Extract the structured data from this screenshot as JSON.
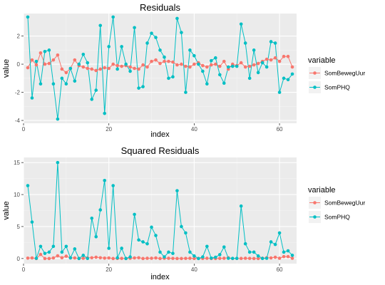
{
  "chart_data": [
    {
      "type": "line",
      "title": "Residuals",
      "xlabel": "index",
      "ylabel": "value",
      "xlim": [
        0,
        64
      ],
      "ylim": [
        -4.2,
        3.6
      ],
      "xticks": [
        0,
        20,
        40,
        60
      ],
      "yticks": [
        -4,
        -2,
        0,
        2
      ],
      "grid": true,
      "legend": {
        "title": "variable",
        "placement": "right"
      },
      "x": [
        1,
        2,
        3,
        4,
        5,
        6,
        7,
        8,
        9,
        10,
        11,
        12,
        13,
        14,
        15,
        16,
        17,
        18,
        19,
        20,
        21,
        22,
        23,
        24,
        25,
        26,
        27,
        28,
        29,
        30,
        31,
        32,
        33,
        34,
        35,
        36,
        37,
        38,
        39,
        40,
        41,
        42,
        43,
        44,
        45,
        46,
        47,
        48,
        49,
        50,
        51,
        52,
        53,
        54,
        55,
        56,
        57,
        58,
        59,
        60,
        61,
        62,
        63
      ],
      "series": [
        {
          "name": "SomBewegUur",
          "color": "#F8766D",
          "values": [
            -0.25,
            0.3,
            -0.05,
            0.8,
            0.0,
            0.05,
            0.3,
            0.65,
            -0.35,
            -0.6,
            -0.3,
            0.3,
            -0.1,
            -0.2,
            -0.3,
            -0.35,
            -0.45,
            -0.35,
            -0.25,
            -0.3,
            0.0,
            -0.1,
            -0.15,
            -0.1,
            -0.2,
            -0.3,
            -0.35,
            -0.05,
            -0.2,
            0.2,
            0.3,
            0.05,
            0.2,
            0.2,
            0.15,
            -0.05,
            0.0,
            -0.15,
            -0.2,
            0.0,
            0.1,
            -0.1,
            -0.2,
            -0.05,
            0.0,
            -0.15,
            0.2,
            -0.35,
            0.0,
            -0.1,
            0.1,
            -0.2,
            -0.15,
            -0.05,
            0.05,
            0.2,
            0.35,
            0.3,
            0.45,
            0.2,
            0.55,
            0.55,
            -0.2
          ]
        },
        {
          "name": "SomPHQ",
          "color": "#00BFC4",
          "values": [
            3.35,
            -2.4,
            0.2,
            -1.4,
            0.9,
            1.0,
            -1.4,
            -3.9,
            -1.0,
            -1.4,
            -0.3,
            -1.2,
            0.0,
            0.7,
            0.1,
            -2.5,
            -1.85,
            2.75,
            -3.5,
            1.25,
            3.35,
            -0.35,
            1.25,
            0.0,
            -0.5,
            2.6,
            -1.7,
            -1.6,
            1.5,
            2.2,
            1.9,
            1.0,
            0.5,
            -1.0,
            -0.9,
            3.25,
            2.25,
            -2.0,
            1.0,
            0.6,
            0.0,
            -0.5,
            -1.4,
            0.25,
            0.45,
            -0.75,
            -1.35,
            -0.2,
            -0.15,
            -0.15,
            2.85,
            1.5,
            -1.0,
            1.0,
            -0.6,
            0.1,
            -0.2,
            1.6,
            1.5,
            -2.0,
            -1.0,
            -1.1,
            -0.7
          ]
        }
      ]
    },
    {
      "type": "line",
      "title": "Squared Residuals",
      "xlabel": "index",
      "ylabel": "value",
      "xlim": [
        0,
        64
      ],
      "ylim": [
        -0.8,
        15.8
      ],
      "xticks": [
        0,
        20,
        40,
        60
      ],
      "yticks": [
        0,
        5,
        10,
        15
      ],
      "grid": true,
      "legend": {
        "title": "variable",
        "placement": "right"
      },
      "x": [
        1,
        2,
        3,
        4,
        5,
        6,
        7,
        8,
        9,
        10,
        11,
        12,
        13,
        14,
        15,
        16,
        17,
        18,
        19,
        20,
        21,
        22,
        23,
        24,
        25,
        26,
        27,
        28,
        29,
        30,
        31,
        32,
        33,
        34,
        35,
        36,
        37,
        38,
        39,
        40,
        41,
        42,
        43,
        44,
        45,
        46,
        47,
        48,
        49,
        50,
        51,
        52,
        53,
        54,
        55,
        56,
        57,
        58,
        59,
        60,
        61,
        62,
        63
      ],
      "series": [
        {
          "name": "SomBewegUur",
          "color": "#F8766D",
          "values": [
            0.06,
            0.09,
            0.0,
            0.64,
            0.0,
            0.0,
            0.09,
            0.42,
            0.12,
            0.36,
            0.09,
            0.09,
            0.01,
            0.04,
            0.09,
            0.12,
            0.2,
            0.12,
            0.06,
            0.09,
            0.0,
            0.01,
            0.02,
            0.01,
            0.04,
            0.09,
            0.12,
            0.0,
            0.04,
            0.04,
            0.09,
            0.0,
            0.04,
            0.04,
            0.02,
            0.0,
            0.0,
            0.02,
            0.04,
            0.0,
            0.01,
            0.01,
            0.04,
            0.0,
            0.0,
            0.02,
            0.04,
            0.12,
            0.0,
            0.01,
            0.01,
            0.04,
            0.02,
            0.0,
            0.0,
            0.04,
            0.12,
            0.09,
            0.2,
            0.04,
            0.3,
            0.3,
            0.04
          ]
        },
        {
          "name": "SomPHQ",
          "color": "#00BFC4",
          "values": [
            11.4,
            5.7,
            0.04,
            1.9,
            0.8,
            1.0,
            1.9,
            15.0,
            1.0,
            1.9,
            0.1,
            1.5,
            0.0,
            0.5,
            0.01,
            6.3,
            3.4,
            7.6,
            12.2,
            1.6,
            11.4,
            0.1,
            1.6,
            0.0,
            0.25,
            6.9,
            2.9,
            2.6,
            2.3,
            4.9,
            3.6,
            1.0,
            0.25,
            1.0,
            0.8,
            10.6,
            5.0,
            4.0,
            1.0,
            0.4,
            0.0,
            0.25,
            1.9,
            0.06,
            0.2,
            0.6,
            1.8,
            0.04,
            0.02,
            0.02,
            8.2,
            2.3,
            1.0,
            1.0,
            0.4,
            0.01,
            0.04,
            2.6,
            2.2,
            4.0,
            1.0,
            1.2,
            0.5
          ]
        }
      ]
    }
  ]
}
